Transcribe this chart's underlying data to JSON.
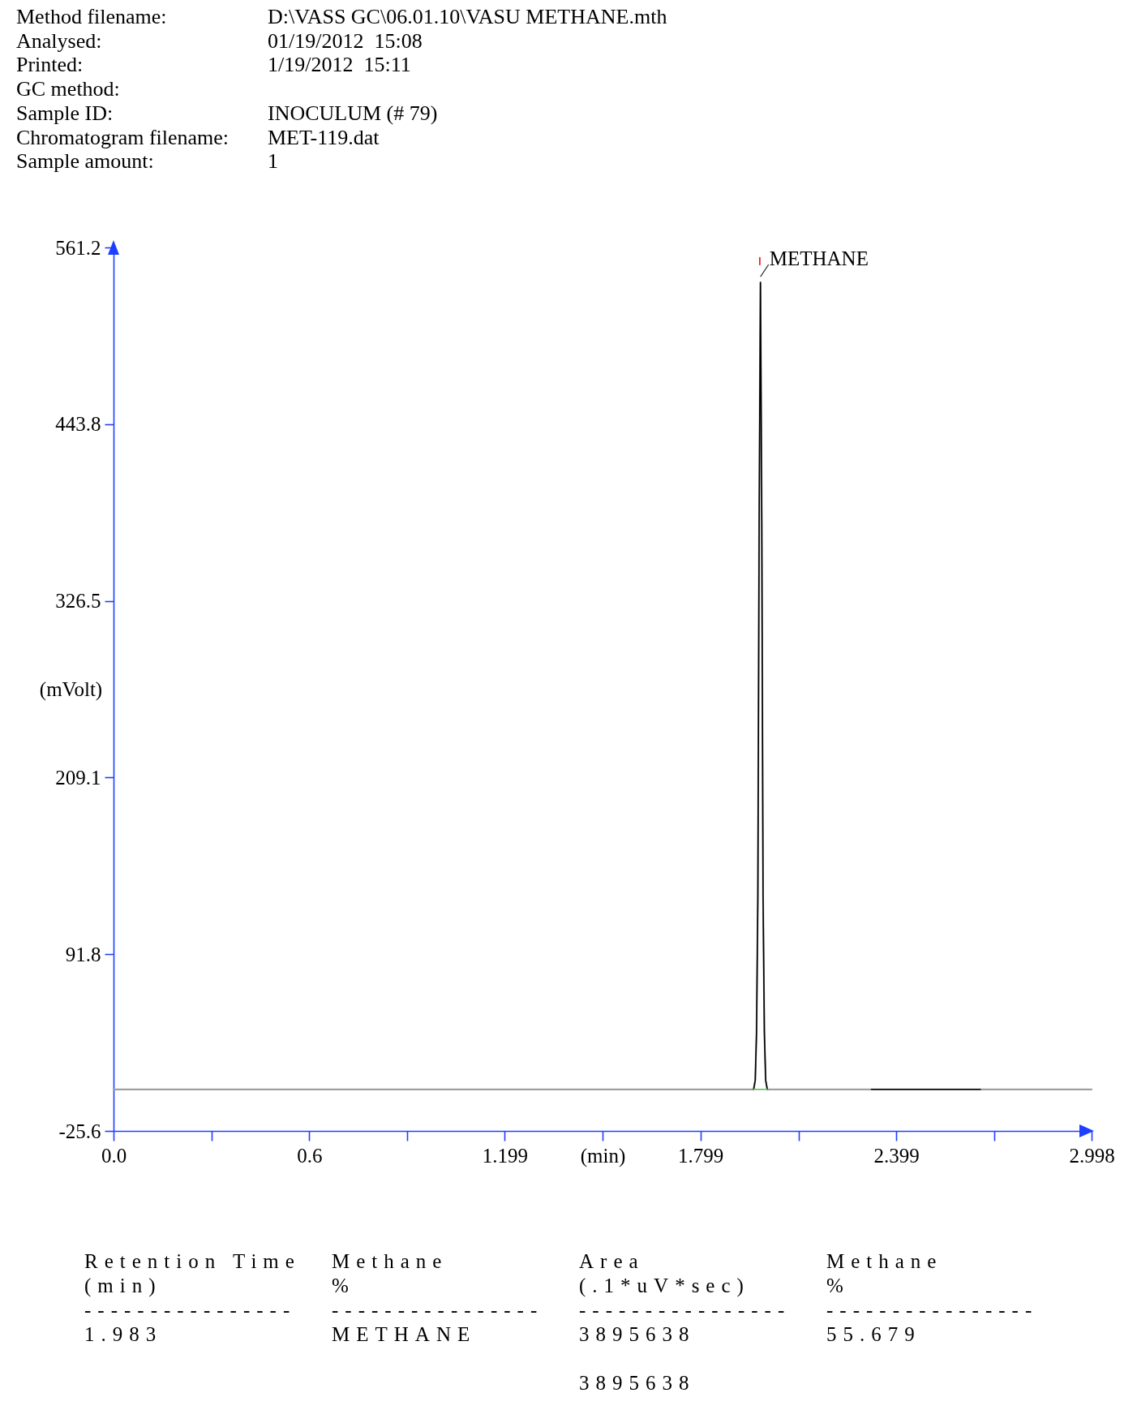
{
  "chart_data": {
    "type": "line",
    "subtitle": "Method filename:\tD:\\VASS GC\\06.01.10\\VASU METHANE.mth\nAnalysed:\t01/19/2012  15:08\nPrinted:\t1/19/2012  15:11\nGC method:\nSample ID:\tINOCULUM (# 79)\nChromatogram filename:\tMET-119.dat\nSample amount:\t1",
    "xlabel": "(min)",
    "ylabel": "(mVolt)",
    "xlim": [
      0,
      2.998
    ],
    "ylim": [
      -25.6,
      561.2
    ],
    "xticks": [
      {
        "value": 0,
        "label": "0.0"
      },
      {
        "value": 0.3,
        "label": null
      },
      0.6,
      {
        "value": 0.9,
        "label": null
      },
      1.199,
      {
        "value": 1.5,
        "label": null
      },
      1.799,
      {
        "value": 2.1,
        "label": null
      },
      2.399,
      {
        "value": 2.7,
        "label": null
      },
      2.998
    ],
    "yticks": [
      -25.6,
      91.8,
      209.1,
      326.5,
      443.8,
      561.2
    ],
    "series": [
      {
        "color": "#a0a0a0",
        "x": [
          0,
          1.962,
          1.967,
          1.971,
          1.975,
          1.979,
          1.983,
          1.987,
          1.991,
          1.995,
          1.999,
          2.004,
          2.998
        ],
        "values": [
          2,
          2,
          8,
          40,
          130,
          380,
          538,
          380,
          130,
          40,
          8,
          2,
          2
        ]
      },
      {
        "color": "#000000",
        "x": [
          1.962,
          1.967,
          1.971,
          1.975,
          1.979,
          1.983,
          1.987,
          1.991,
          1.995,
          1.999,
          2.004
        ],
        "values": [
          2,
          8,
          40,
          130,
          380,
          538,
          380,
          130,
          40,
          8,
          2
        ]
      },
      {
        "color": "#000000",
        "x": [
          2.323,
          2.657
        ],
        "values": [
          2,
          2
        ]
      },
      {
        "color": "#50c050",
        "x": [
          1.962,
          2.004
        ],
        "values": [
          2,
          2
        ]
      },
      {
        "color": "#ff0000",
        "x": [
          1.981,
          1.981
        ],
        "values": [
          549.7,
          554.5
        ]
      }
    ],
    "annotations": [
      {
        "text": "METHANE",
        "x": 1.983,
        "y": 538
      },
      "Retention Time\tMethane\tArea\tMethane\n(min)\t%\t(.1*uV*sec)\t%\n----------------\t----------------\t----------------\t----------------\n1.983\tMETHANE\t3895638\t55.679\n\n\t\t3895638"
    ]
  }
}
